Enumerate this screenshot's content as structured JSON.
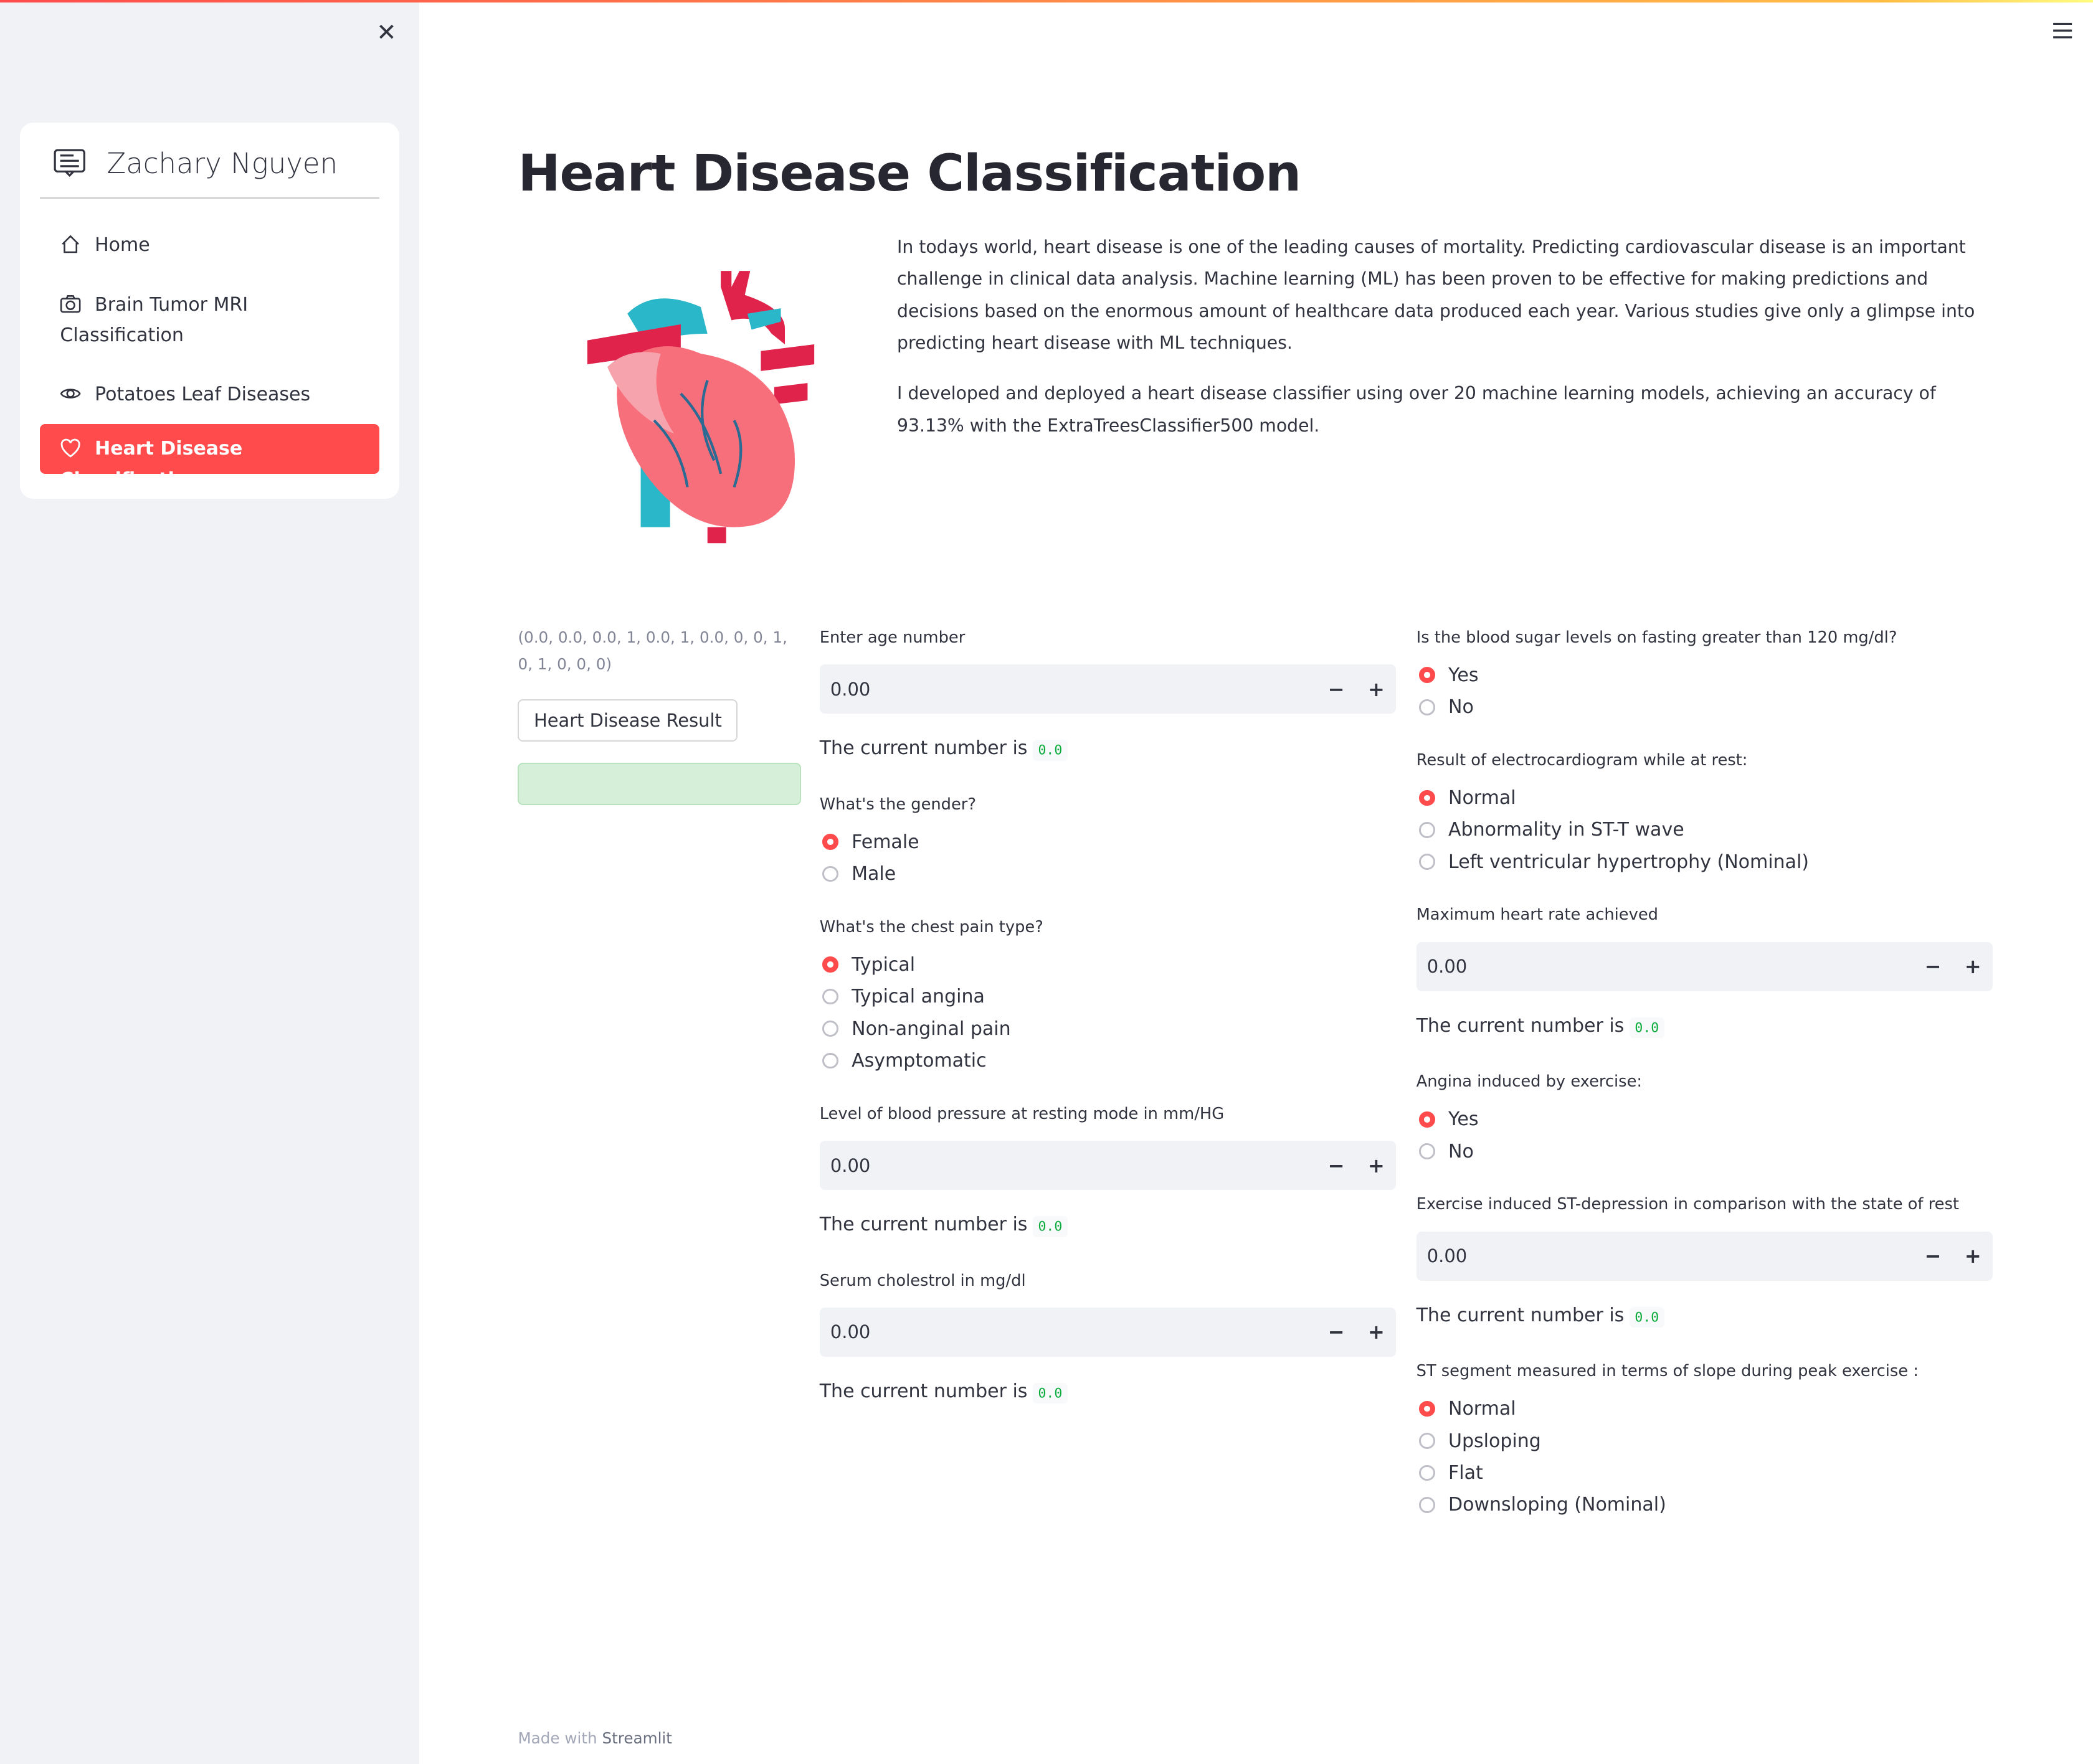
{
  "sidebar": {
    "close_icon": "close-icon",
    "brand": "Zachary Nguyen",
    "brand_icon": "chat-square-text-icon",
    "items": [
      {
        "label": "Home",
        "icon": "house-icon"
      },
      {
        "label": "Brain Tumor MRI Classification",
        "icon": "camera-icon"
      },
      {
        "label": "Potatoes Leaf Diseases",
        "icon": "eye-icon"
      },
      {
        "label": "Heart Disease Classification",
        "icon": "heart-icon",
        "active": true
      }
    ],
    "accent": "#ff4b4b"
  },
  "header": {
    "menu_icon": "hamburger-icon"
  },
  "main": {
    "title": "Heart Disease Classification",
    "intro": [
      "In todays world, heart disease is one of the leading causes of mortality. Predicting cardiovascular disease is an important challenge in clinical data analysis. Machine learning (ML) has been proven to be effective for making predictions and decisions based on the enormous amount of healthcare data produced each year. Various studies give only a glimpse into predicting heart disease with ML techniques.",
      "I developed and deployed a heart disease classifier using over 20 machine learning models, achieving an accuracy of 93.13% with the ExtraTreesClassifier500 model."
    ],
    "vector": "(0.0, 0.0, 0.0, 1, 0.0, 1, 0.0, 0, 0, 1, 0, 1, 0, 0, 0)",
    "result_button": "Heart Disease Result",
    "current_prefix": "The current number is",
    "age": {
      "label": "Enter age number",
      "value": "0.00",
      "current": "0.0"
    },
    "gender": {
      "label": "What's the gender?",
      "options": [
        "Female",
        "Male"
      ],
      "selected": 0
    },
    "chest": {
      "label": "What's the chest pain type?",
      "options": [
        "Typical",
        "Typical angina",
        "Non-anginal pain",
        "Asymptomatic"
      ],
      "selected": 0
    },
    "bp": {
      "label": "Level of blood pressure at resting mode in mm/HG",
      "value": "0.00",
      "current": "0.0"
    },
    "chol": {
      "label": "Serum cholestrol in mg/dl",
      "value": "0.00",
      "current": "0.0"
    },
    "sugar": {
      "label": "Is the blood sugar levels on fasting greater than 120 mg/dl?",
      "options": [
        "Yes",
        "No"
      ],
      "selected": 0
    },
    "ecg": {
      "label": "Result of electrocardiogram while at rest:",
      "options": [
        "Normal",
        "Abnormality in ST-T wave",
        "Left ventricular hypertrophy (Nominal)"
      ],
      "selected": 0
    },
    "maxhr": {
      "label": "Maximum heart rate achieved",
      "value": "0.00",
      "current": "0.0"
    },
    "angina": {
      "label": "Angina induced by exercise:",
      "options": [
        "Yes",
        "No"
      ],
      "selected": 0
    },
    "st": {
      "label": "Exercise induced ST-depression in comparison with the state of rest",
      "value": "0.00",
      "current": "0.0"
    },
    "slope": {
      "label": "ST segment measured in terms of slope during peak exercise :",
      "options": [
        "Normal",
        "Upsloping",
        "Flat",
        "Downsloping (Nominal)"
      ],
      "selected": 0
    }
  },
  "footer": {
    "prefix": "Made with",
    "brand": "Streamlit"
  }
}
